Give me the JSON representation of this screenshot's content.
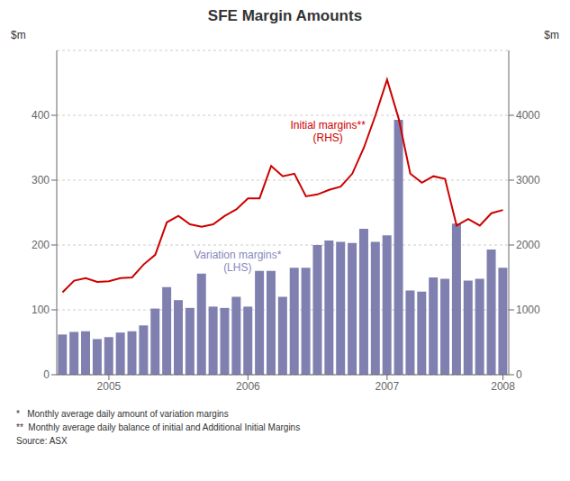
{
  "chart_data": {
    "type": "bar",
    "title": "SFE Margin Amounts",
    "ylabel": "$m",
    "y2label": "$m",
    "categories": [
      null,
      null,
      null,
      null,
      "2005",
      null,
      null,
      null,
      null,
      null,
      null,
      null,
      null,
      null,
      null,
      null,
      "2006",
      null,
      null,
      null,
      null,
      null,
      null,
      null,
      null,
      null,
      null,
      null,
      "2007",
      null,
      null,
      null,
      null,
      null,
      null,
      null,
      null,
      null,
      "2008"
    ],
    "series": [
      {
        "type": "bar",
        "color": "#8080b0",
        "values": [
          62,
          66,
          67,
          55,
          58,
          65,
          67,
          76,
          102,
          135,
          115,
          103,
          156,
          105,
          103,
          120,
          105,
          160,
          160,
          120,
          165,
          165,
          200,
          207,
          205,
          203,
          225,
          205,
          215,
          393,
          130,
          128,
          150,
          148,
          233,
          145,
          148,
          193,
          165
        ]
      },
      {
        "type": "line",
        "axis": "y2",
        "color": "#cc0000",
        "values": [
          1270,
          1450,
          1490,
          1430,
          1440,
          1490,
          1500,
          1700,
          1850,
          2350,
          2450,
          2320,
          2280,
          2320,
          2450,
          2550,
          2720,
          2720,
          3220,
          3060,
          3100,
          2750,
          2780,
          2850,
          2900,
          3100,
          3500,
          4000,
          4550,
          3950,
          3100,
          2960,
          3060,
          3020,
          2300,
          2400,
          2300,
          2490,
          2540
        ]
      }
    ],
    "ylim": [
      0,
      500
    ],
    "yticks": [
      0,
      100,
      200,
      300,
      400
    ],
    "y2lim": [
      0,
      5000
    ],
    "y2ticks": [
      0,
      1000,
      2000,
      3000,
      4000
    ],
    "grid": true,
    "annotations": [
      {
        "text": "Variation margins*\n(LHS)",
        "color": "#8888bb"
      },
      {
        "text": "Initial margins**\n(RHS)",
        "color": "#cc0000"
      }
    ],
    "footnotes": [
      "*   Monthly average daily amount of variation margins",
      "**  Monthly average daily balance of initial and Additional Initial Margins",
      "Source: ASX"
    ]
  }
}
